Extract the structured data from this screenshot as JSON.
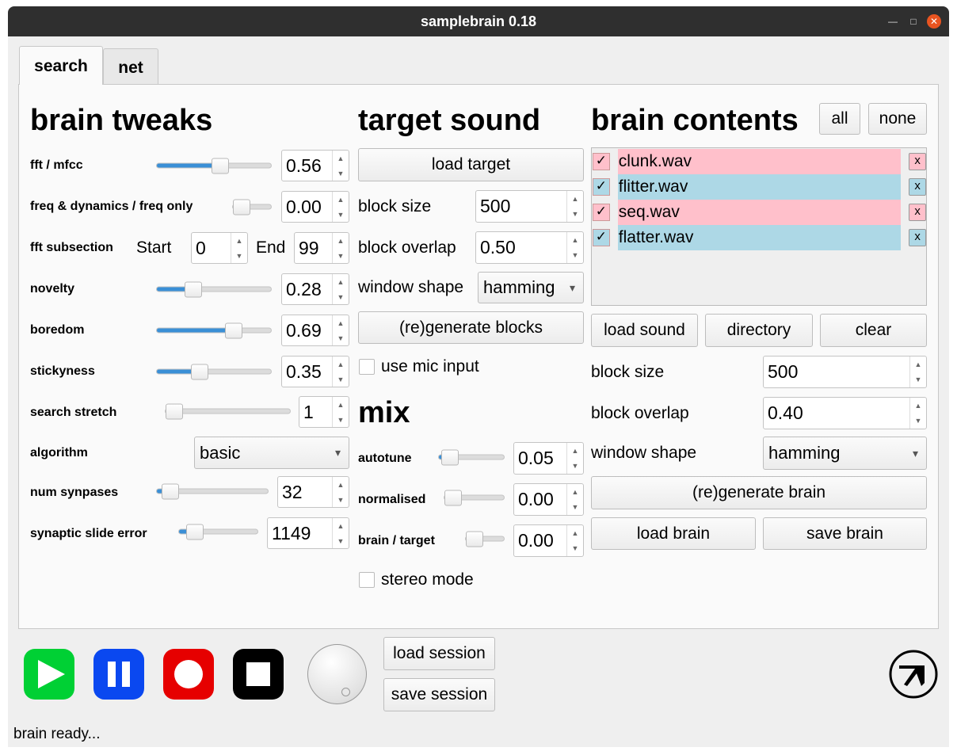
{
  "window": {
    "title": "samplebrain 0.18"
  },
  "tabs": [
    {
      "label": "search"
    },
    {
      "label": "net"
    }
  ],
  "brain_tweaks": {
    "heading": "brain tweaks",
    "fft_mfcc": {
      "label": "fft / mfcc",
      "value": "0.56",
      "slider": 0.56
    },
    "freq_dyn": {
      "label": "freq & dynamics / freq only",
      "value": "0.00",
      "slider": 0.0
    },
    "fft_subsection": {
      "label": "fft subsection",
      "start_label": "Start",
      "start": "0",
      "end_label": "End",
      "end": "99"
    },
    "novelty": {
      "label": "novelty",
      "value": "0.28",
      "slider": 0.28
    },
    "boredom": {
      "label": "boredom",
      "value": "0.69",
      "slider": 0.69
    },
    "stickyness": {
      "label": "stickyness",
      "value": "0.35",
      "slider": 0.35
    },
    "search_stretch": {
      "label": "search stretch",
      "value": "1",
      "slider": 0.0
    },
    "algorithm": {
      "label": "algorithm",
      "value": "basic"
    },
    "num_synapses": {
      "label": "num synpases",
      "value": "32",
      "slider": 0.05
    },
    "slide_error": {
      "label": "synaptic slide error",
      "value": "1149",
      "slider": 0.12
    }
  },
  "target_sound": {
    "heading": "target sound",
    "load": "load target",
    "block_size": {
      "label": "block size",
      "value": "500"
    },
    "block_overlap": {
      "label": "block overlap",
      "value": "0.50"
    },
    "window_shape": {
      "label": "window shape",
      "value": "hamming"
    },
    "regenerate": "(re)generate blocks",
    "mic": "use mic input"
  },
  "mix": {
    "heading": "mix",
    "autotune": {
      "label": "autotune",
      "value": "0.05",
      "slider": 0.05
    },
    "normalised": {
      "label": "normalised",
      "value": "0.00",
      "slider": 0.0
    },
    "brain_target": {
      "label": "brain / target",
      "value": "0.00",
      "slider": 0.0
    },
    "stereo": "stereo mode"
  },
  "brain_contents": {
    "heading": "brain contents",
    "all": "all",
    "none": "none",
    "items": [
      {
        "name": "clunk.wav",
        "color": "#ffc0cb"
      },
      {
        "name": "flitter.wav",
        "color": "#add8e6"
      },
      {
        "name": "seq.wav",
        "color": "#ffc0cb"
      },
      {
        "name": "flatter.wav",
        "color": "#add8e6"
      }
    ],
    "check": "✓",
    "remove": "x",
    "load_sound": "load sound",
    "directory": "directory",
    "clear": "clear",
    "block_size": {
      "label": "block size",
      "value": "500"
    },
    "block_overlap": {
      "label": "block overlap",
      "value": "0.40"
    },
    "window_shape": {
      "label": "window shape",
      "value": "hamming"
    },
    "regenerate": "(re)generate brain",
    "load_brain": "load brain",
    "save_brain": "save brain"
  },
  "transport": {
    "play_color": "#00d034",
    "pause_color": "#0a48f0",
    "record_color": "#e60000",
    "stop_color": "#000000"
  },
  "session": {
    "load": "load session",
    "save": "save session"
  },
  "status": "brain ready..."
}
